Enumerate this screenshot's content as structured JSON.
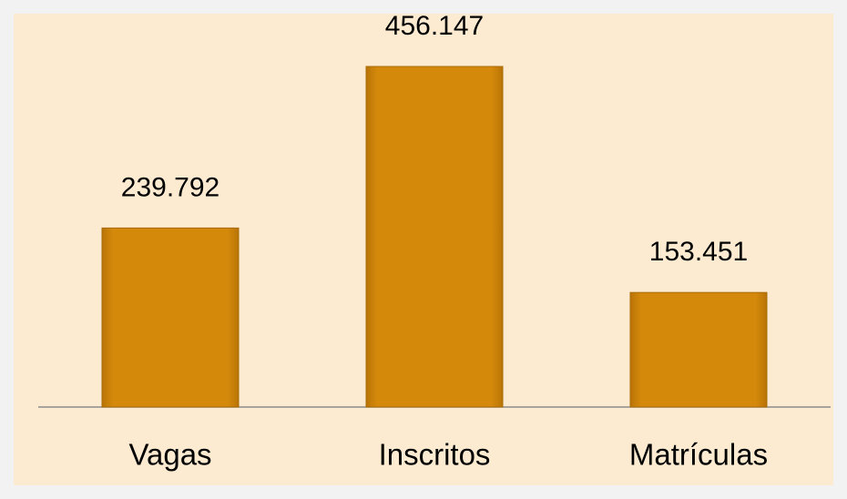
{
  "chart_data": {
    "type": "bar",
    "categories": [
      "Vagas",
      "Inscritos",
      "Matrículas"
    ],
    "values": [
      239792,
      456147,
      153451
    ],
    "value_labels": [
      "239.792",
      "456.147",
      "153.451"
    ],
    "color": "#d4890b"
  }
}
